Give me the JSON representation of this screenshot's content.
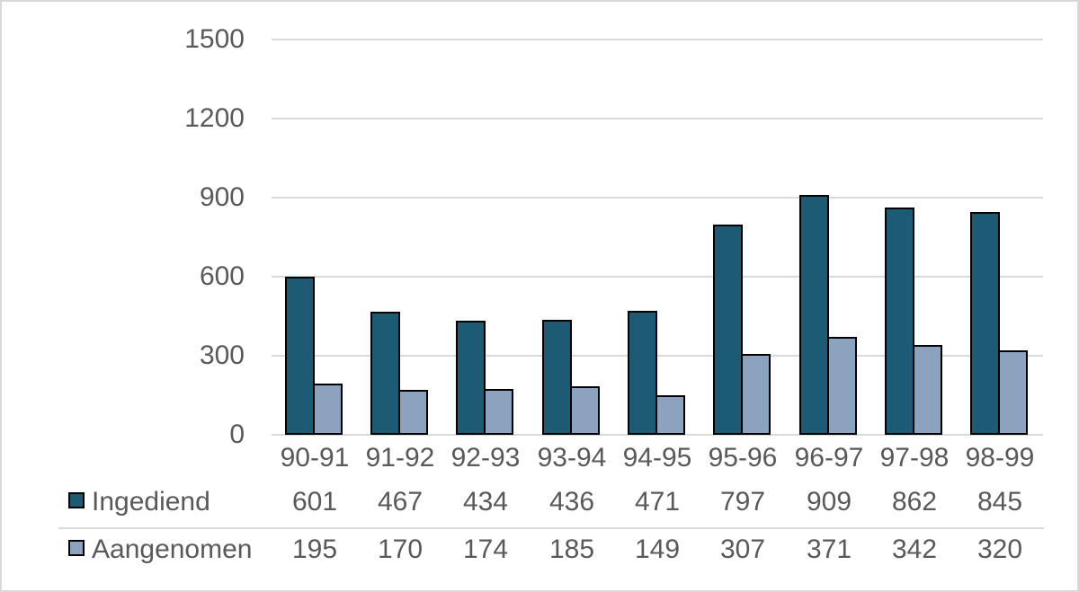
{
  "chart_data": {
    "type": "bar",
    "title": "",
    "xlabel": "",
    "ylabel": "",
    "categories": [
      "90-91",
      "91-92",
      "92-93",
      "93-94",
      "94-95",
      "95-96",
      "96-97",
      "97-98",
      "98-99"
    ],
    "series": [
      {
        "name": "Ingediend",
        "color": "#1d5a73",
        "values": [
          601,
          467,
          434,
          436,
          471,
          797,
          909,
          862,
          845
        ]
      },
      {
        "name": "Aangenomen",
        "color": "#8ba3bf",
        "values": [
          195,
          170,
          174,
          185,
          149,
          307,
          371,
          342,
          320
        ]
      }
    ],
    "ylim": [
      0,
      1500
    ],
    "yticks": [
      0,
      300,
      600,
      900,
      1200,
      1500
    ],
    "grid": true,
    "legend_position": "table-left"
  },
  "colors": {
    "background": "#ffffff",
    "frame": "#d9d9d9",
    "gridline": "#d9d9d9",
    "text": "#595959",
    "bar_border": "#000000",
    "series_dark": "#1d5a73",
    "series_light": "#8ba3bf"
  }
}
